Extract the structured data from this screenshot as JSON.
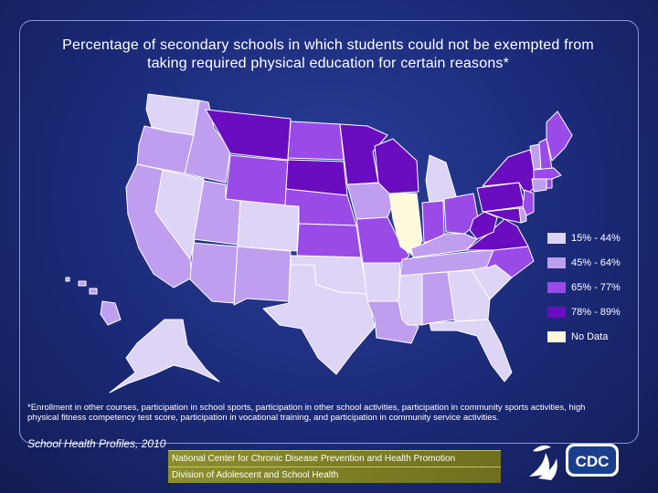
{
  "title_lines": [
    "Percentage of secondary schools in which students could not be exempted from",
    "taking required physical education for certain reasons*"
  ],
  "legend": [
    {
      "label": "15% - 44%",
      "color": "#ded4f5"
    },
    {
      "label": "45% - 64%",
      "color": "#bf9ef0"
    },
    {
      "label": "65% - 77%",
      "color": "#9a4ae6"
    },
    {
      "label": "78% - 89%",
      "color": "#6a0cbf"
    },
    {
      "label": "No Data",
      "color": "#fffadb"
    }
  ],
  "map_data": {
    "states": [
      {
        "abbr": "WA",
        "bin": 0
      },
      {
        "abbr": "OR",
        "bin": 1
      },
      {
        "abbr": "CA",
        "bin": 1
      },
      {
        "abbr": "NV",
        "bin": 0
      },
      {
        "abbr": "ID",
        "bin": 1
      },
      {
        "abbr": "MT",
        "bin": 3
      },
      {
        "abbr": "WY",
        "bin": 2
      },
      {
        "abbr": "UT",
        "bin": 1
      },
      {
        "abbr": "AZ",
        "bin": 1
      },
      {
        "abbr": "CO",
        "bin": 0
      },
      {
        "abbr": "NM",
        "bin": 1
      },
      {
        "abbr": "ND",
        "bin": 2
      },
      {
        "abbr": "SD",
        "bin": 3
      },
      {
        "abbr": "NE",
        "bin": 2
      },
      {
        "abbr": "KS",
        "bin": 2
      },
      {
        "abbr": "OK",
        "bin": 0
      },
      {
        "abbr": "TX",
        "bin": 0
      },
      {
        "abbr": "MN",
        "bin": 3
      },
      {
        "abbr": "IA",
        "bin": 1
      },
      {
        "abbr": "MO",
        "bin": 2
      },
      {
        "abbr": "AR",
        "bin": 0
      },
      {
        "abbr": "LA",
        "bin": 1
      },
      {
        "abbr": "WI",
        "bin": 3
      },
      {
        "abbr": "IL",
        "bin": 4
      },
      {
        "abbr": "MI",
        "bin": 0
      },
      {
        "abbr": "IN",
        "bin": 2
      },
      {
        "abbr": "OH",
        "bin": 2
      },
      {
        "abbr": "KY",
        "bin": 1
      },
      {
        "abbr": "TN",
        "bin": 1
      },
      {
        "abbr": "MS",
        "bin": 0
      },
      {
        "abbr": "AL",
        "bin": 1
      },
      {
        "abbr": "GA",
        "bin": 0
      },
      {
        "abbr": "FL",
        "bin": 0
      },
      {
        "abbr": "SC",
        "bin": 0
      },
      {
        "abbr": "NC",
        "bin": 2
      },
      {
        "abbr": "VA",
        "bin": 3
      },
      {
        "abbr": "WV",
        "bin": 3
      },
      {
        "abbr": "PA",
        "bin": 3
      },
      {
        "abbr": "NY",
        "bin": 3
      },
      {
        "abbr": "ME",
        "bin": 2
      },
      {
        "abbr": "NH",
        "bin": 2
      },
      {
        "abbr": "VT",
        "bin": 1
      },
      {
        "abbr": "MA",
        "bin": 2
      },
      {
        "abbr": "CT",
        "bin": 1
      },
      {
        "abbr": "RI",
        "bin": 2
      },
      {
        "abbr": "NJ",
        "bin": 2
      },
      {
        "abbr": "DE",
        "bin": 1
      },
      {
        "abbr": "MD",
        "bin": 3
      },
      {
        "abbr": "AK",
        "bin": 0
      },
      {
        "abbr": "HI",
        "bin": 1
      }
    ]
  },
  "footnote": "*Enrollment in other courses, participation in school sports, participation in other school activities, participation in community sports activities, high physical fitness competency test score, participation in vocational training, and participation in community service activities.",
  "source": "School Health Profiles, 2010",
  "footer_bars": [
    "National Center for Chronic Disease Prevention and Health Promotion",
    "Division of Adolescent and School Health"
  ],
  "logo_text": "CDC"
}
